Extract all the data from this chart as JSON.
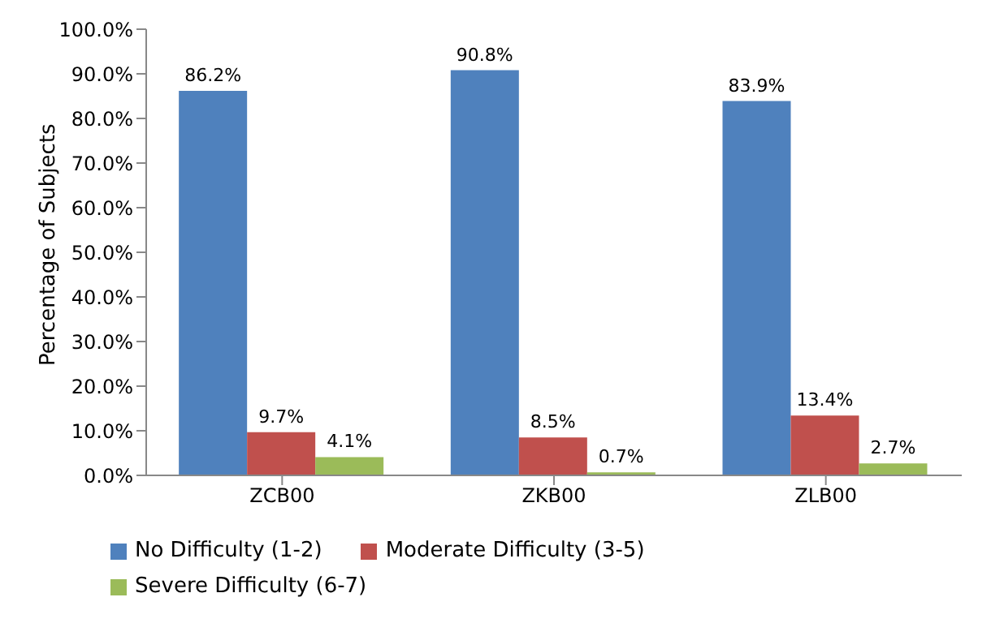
{
  "chart_data": {
    "type": "bar",
    "ylabel": "Percentage of Subjects",
    "categories": [
      "ZCB00",
      "ZKB00",
      "ZLB00"
    ],
    "series": [
      {
        "name": "No Difficulty (1-2)",
        "color": "#4f81bd",
        "values": [
          86.2,
          90.8,
          83.9
        ],
        "value_labels": [
          "86.2%",
          "90.8%",
          "83.9%"
        ]
      },
      {
        "name": "Moderate Difficulty (3-5)",
        "color": "#c0504d",
        "values": [
          9.7,
          8.5,
          13.4
        ],
        "value_labels": [
          "9.7%",
          "8.5%",
          "13.4%"
        ]
      },
      {
        "name": "Severe Difficulty (6-7)",
        "color": "#9bbb59",
        "values": [
          4.1,
          0.7,
          2.7
        ],
        "value_labels": [
          "4.1%",
          "0.7%",
          "2.7%"
        ]
      }
    ],
    "ylim": [
      0,
      100
    ],
    "yticks": [
      {
        "value": 0,
        "label": "0.0%"
      },
      {
        "value": 10,
        "label": "10.0%"
      },
      {
        "value": 20,
        "label": "20.0%"
      },
      {
        "value": 30,
        "label": "30.0%"
      },
      {
        "value": 40,
        "label": "40.0%"
      },
      {
        "value": 50,
        "label": "50.0%"
      },
      {
        "value": 60,
        "label": "60.0%"
      },
      {
        "value": 70,
        "label": "70.0%"
      },
      {
        "value": 80,
        "label": "80.0%"
      },
      {
        "value": 90,
        "label": "90.0%"
      },
      {
        "value": 100,
        "label": "100.0%"
      }
    ],
    "grid": false,
    "legend": "bottom left"
  }
}
